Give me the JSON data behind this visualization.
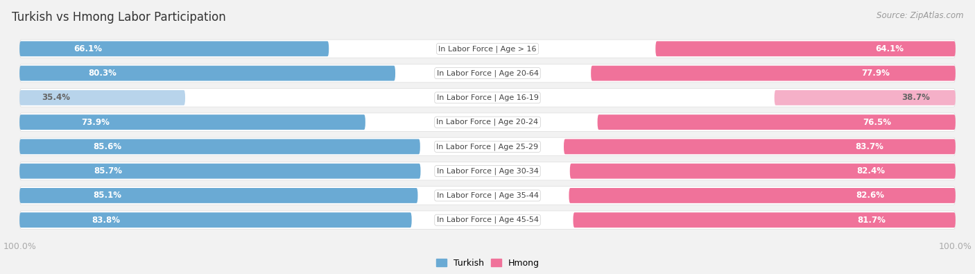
{
  "title": "Turkish vs Hmong Labor Participation",
  "source": "Source: ZipAtlas.com",
  "categories": [
    "In Labor Force | Age > 16",
    "In Labor Force | Age 20-64",
    "In Labor Force | Age 16-19",
    "In Labor Force | Age 20-24",
    "In Labor Force | Age 25-29",
    "In Labor Force | Age 30-34",
    "In Labor Force | Age 35-44",
    "In Labor Force | Age 45-54"
  ],
  "turkish_values": [
    66.1,
    80.3,
    35.4,
    73.9,
    85.6,
    85.7,
    85.1,
    83.8
  ],
  "hmong_values": [
    64.1,
    77.9,
    38.7,
    76.5,
    83.7,
    82.4,
    82.6,
    81.7
  ],
  "turkish_color": "#6aaad4",
  "turkish_color_light": "#b8d4eb",
  "hmong_color": "#f0729a",
  "hmong_color_light": "#f5b0c8",
  "label_color_white": "#ffffff",
  "label_color_dark": "#666666",
  "bg_color": "#f2f2f2",
  "row_bg_color": "#e8e8e8",
  "row_bg_color2": "#f0f0f0",
  "center_label_color": "#444444",
  "axis_label_color": "#aaaaaa",
  "title_fontsize": 12,
  "source_fontsize": 8.5,
  "bar_label_fontsize": 8.5,
  "category_fontsize": 8,
  "legend_fontsize": 9,
  "x_axis_max": 100.0,
  "x_axis_label": "100.0%",
  "low_threshold": 50.0
}
